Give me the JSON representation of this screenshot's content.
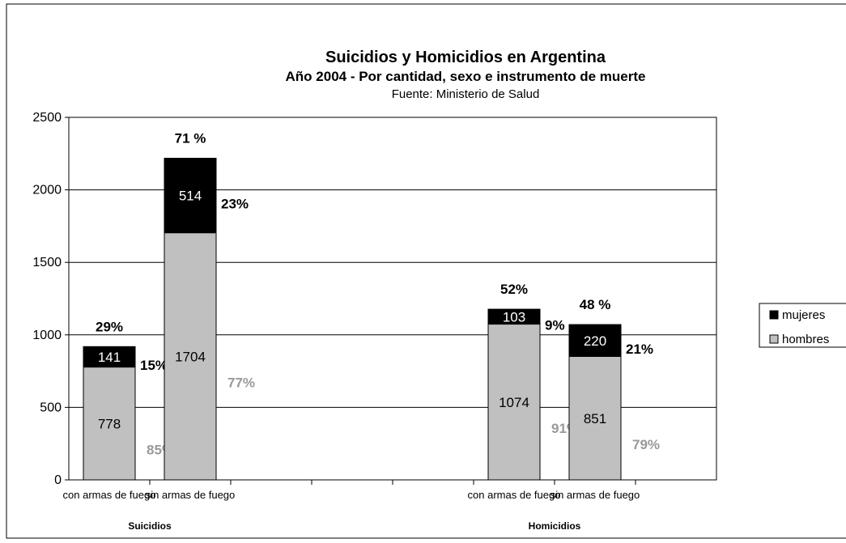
{
  "chart_data": {
    "type": "bar",
    "title": "Suicidios y Homicidios en Argentina",
    "subtitle": "Año 2004 - Por cantidad, sexo e instrumento de muerte",
    "source": "Fuente: Ministerio de Salud",
    "ylim": [
      0,
      2500
    ],
    "yticks": [
      "0",
      "500",
      "1000",
      "1500",
      "2000",
      "2500"
    ],
    "grid": true,
    "legend_position": "right",
    "stacked": true,
    "groups": [
      {
        "label": "Suicidios",
        "categories": [
          "con armas de fuego",
          "sin armas de fuego"
        ]
      },
      {
        "label": "Homicidios",
        "categories": [
          "con armas de fuego",
          "sin armas de fuego"
        ]
      }
    ],
    "categories": [
      "con armas de fuego",
      "sin armas de fuego",
      "con armas de fuego",
      "sin armas de fuego"
    ],
    "series": [
      {
        "name": "hombres",
        "values": [
          778,
          1704,
          1074,
          851
        ],
        "color": "#c0c0c0"
      },
      {
        "name": "mujeres",
        "values": [
          141,
          514,
          103,
          220
        ],
        "color": "#000000"
      }
    ],
    "legend": [
      "mujeres",
      "hombres"
    ],
    "annotations": {
      "total_pct": [
        "29%",
        "71 %",
        "52%",
        "48 %"
      ],
      "mujeres_pct": [
        "15%",
        "23%",
        "9%",
        "21%"
      ],
      "hombres_pct": [
        "85%",
        "77%",
        "91%",
        "79%"
      ]
    },
    "colors": {
      "annotation_light": "#999999",
      "annotation_dark": "#000000"
    }
  }
}
